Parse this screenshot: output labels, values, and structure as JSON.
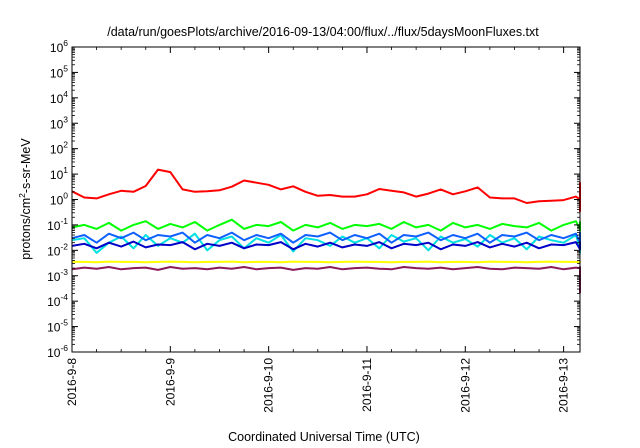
{
  "chart_data": {
    "type": "line",
    "title": "/data/run/goesPlots/archive/2016-09-13/04:00/flux/../flux/5daysMoonFluxes.txt",
    "xlabel": "Coordinated Universal Time (UTC)",
    "ylabel": {
      "pre": "protons/cm",
      "sup": "2",
      "post": "-s-sr-MeV"
    },
    "y_scale": "log",
    "ylim": [
      1e-06,
      1000000.0
    ],
    "y_ticks": [
      {
        "base": "10",
        "exp": "6"
      },
      {
        "base": "10",
        "exp": "5"
      },
      {
        "base": "10",
        "exp": "4"
      },
      {
        "base": "10",
        "exp": "3"
      },
      {
        "base": "10",
        "exp": "2"
      },
      {
        "base": "10",
        "exp": "1"
      },
      {
        "base": "10",
        "exp": "0"
      },
      {
        "base": "10",
        "exp": "-1"
      },
      {
        "base": "10",
        "exp": "-2"
      },
      {
        "base": "10",
        "exp": "-3"
      },
      {
        "base": "10",
        "exp": "-4"
      },
      {
        "base": "10",
        "exp": "-5"
      },
      {
        "base": "10",
        "exp": "-6"
      }
    ],
    "xlim": [
      "2016-09-08 00:00",
      "2016-09-13 04:00"
    ],
    "x_ticks": [
      "2016-9-8",
      "2016-9-9",
      "2016-9-10",
      "2016-9-11",
      "2016-9-12",
      "2016-9-13"
    ],
    "grid": false,
    "x_time_step_hours": 3,
    "series": [
      {
        "color": "#ff0000",
        "values": [
          2.1,
          1.2,
          1.1,
          1.6,
          2.2,
          2.0,
          3.4,
          15,
          12,
          2.5,
          2.0,
          2.1,
          2.3,
          3.2,
          5.6,
          4.6,
          3.8,
          2.5,
          3.3,
          2.0,
          1.4,
          1.5,
          1.3,
          1.3,
          1.6,
          2.6,
          2.2,
          1.9,
          1.3,
          1.7,
          2.5,
          1.6,
          2.1,
          3.0,
          1.2,
          1.1,
          1.1,
          0.73,
          0.85,
          0.9,
          0.95,
          1.3,
          1.0,
          1.8,
          2.4,
          1.6,
          1.2,
          1.5,
          0.9,
          0.8,
          0.7,
          0.9,
          1.4,
          1.5,
          1.6,
          1.9,
          1.7,
          2.8,
          3.2,
          2.6,
          2.3,
          1.3,
          0.85,
          0.65,
          0.9,
          0.75,
          1.2,
          1.5,
          2.6,
          2.2,
          2.1,
          1.7,
          1.3,
          1.1,
          0.85,
          0.75,
          0.75,
          0.85,
          0.55,
          0.75,
          1.1,
          0.75,
          0.5,
          0.35,
          0.42,
          0.35,
          0.35,
          0.45,
          0.48,
          0.6,
          1.0,
          1.5,
          2.0,
          1.2,
          1.0,
          0.8,
          1.4,
          1.5,
          1.0,
          1.0,
          3.3,
          4.5,
          4.4,
          1.2,
          1.1,
          0.8,
          0.5,
          0.48,
          0.5
        ]
      },
      {
        "color": "#00ff00",
        "values": [
          0.08,
          0.1,
          0.07,
          0.12,
          0.06,
          0.1,
          0.14,
          0.07,
          0.11,
          0.08,
          0.13,
          0.06,
          0.1,
          0.16,
          0.07,
          0.1,
          0.09,
          0.13,
          0.06,
          0.1,
          0.08,
          0.12,
          0.07,
          0.1,
          0.09,
          0.11,
          0.07,
          0.13,
          0.08,
          0.1,
          0.06,
          0.12,
          0.08,
          0.1,
          0.07,
          0.11,
          0.09,
          0.08,
          0.12,
          0.06,
          0.1,
          0.14,
          0.07,
          0.09,
          0.11,
          0.06,
          0.1,
          0.08,
          0.13,
          0.07,
          0.1,
          0.09,
          0.12,
          0.06,
          0.1,
          0.08,
          0.11,
          0.07,
          0.13,
          0.09,
          0.1,
          0.07,
          0.12,
          0.08,
          0.1,
          0.06,
          0.11,
          0.09,
          0.1,
          0.07,
          0.12,
          0.08,
          0.1,
          0.09,
          0.11,
          0.06,
          0.1,
          0.08,
          0.12,
          0.07,
          0.1,
          0.09,
          0.11,
          0.06,
          0.12,
          0.08,
          0.1,
          0.07,
          0.11,
          0.09,
          0.1,
          0.07,
          0.12,
          0.08,
          0.1,
          0.06,
          0.11,
          0.09,
          0.1,
          0.07,
          0.12,
          0.08,
          0.1,
          0.09,
          0.11,
          0.08,
          0.1,
          0.09,
          0.1
        ]
      },
      {
        "color": "#00e0e0",
        "values": [
          0.025,
          0.03,
          0.008,
          0.02,
          0.035,
          0.012,
          0.04,
          0.015,
          0.03,
          0.02,
          0.045,
          0.01,
          0.025,
          0.035,
          0.012,
          0.03,
          0.02,
          0.04,
          0.009,
          0.03,
          0.025,
          0.015,
          0.035,
          0.02,
          0.03,
          0.012,
          0.04,
          0.022,
          0.03,
          0.01,
          0.035,
          0.02,
          0.028,
          0.014,
          0.04,
          0.02,
          0.03,
          0.011,
          0.035,
          0.025,
          0.02,
          0.04,
          0.012,
          0.03,
          0.022,
          0.035,
          0.009,
          0.03,
          0.025,
          0.015,
          0.04,
          0.02,
          0.03,
          0.012,
          0.035,
          0.025,
          0.02,
          0.04,
          0.01,
          0.03,
          0.022,
          0.035,
          0.013,
          0.03,
          0.025,
          0.02,
          0.04,
          0.011,
          0.03,
          0.022,
          0.035,
          0.015,
          0.03,
          0.02,
          0.04,
          0.012,
          0.03,
          0.025,
          0.02,
          0.035,
          0.01,
          0.03,
          0.022,
          0.04,
          0.015,
          0.03,
          0.02,
          0.035,
          0.012,
          0.03,
          0.025,
          0.02,
          0.04,
          0.011,
          0.03,
          0.022,
          0.035,
          0.008,
          0.03,
          0.025,
          0.02,
          0.04,
          0.015,
          0.03,
          0.02,
          0.035,
          0.025,
          0.03,
          0.028
        ]
      },
      {
        "color": "#1060ff",
        "values": [
          0.03,
          0.04,
          0.02,
          0.045,
          0.03,
          0.05,
          0.025,
          0.04,
          0.035,
          0.05,
          0.02,
          0.04,
          0.03,
          0.05,
          0.025,
          0.04,
          0.03,
          0.045,
          0.02,
          0.04,
          0.035,
          0.05,
          0.025,
          0.04,
          0.03,
          0.045,
          0.02,
          0.04,
          0.035,
          0.05,
          0.025,
          0.04,
          0.03,
          0.045,
          0.02,
          0.04,
          0.035,
          0.05,
          0.025,
          0.04,
          0.03,
          0.045,
          0.02,
          0.04,
          0.035,
          0.05,
          0.025,
          0.04,
          0.03,
          0.045,
          0.02,
          0.04,
          0.035,
          0.05,
          0.025,
          0.04,
          0.03,
          0.045,
          0.02,
          0.04,
          0.035,
          0.05,
          0.025,
          0.04,
          0.03,
          0.045,
          0.02,
          0.04,
          0.035,
          0.05,
          0.025,
          0.04,
          0.03,
          0.045,
          0.02,
          0.04,
          0.035,
          0.05,
          0.025,
          0.04,
          0.03,
          0.045,
          0.02,
          0.04,
          0.035,
          0.05,
          0.025,
          0.04,
          0.03,
          0.045,
          0.02,
          0.04,
          0.035,
          0.05,
          0.025,
          0.04,
          0.03,
          0.045,
          0.02,
          0.04,
          0.035,
          0.05,
          0.025,
          0.04,
          0.03,
          0.045,
          0.035,
          0.04,
          0.04
        ]
      },
      {
        "color": "#0000c8",
        "values": [
          0.015,
          0.018,
          0.012,
          0.02,
          0.014,
          0.022,
          0.013,
          0.017,
          0.016,
          0.021,
          0.011,
          0.018,
          0.015,
          0.02,
          0.012,
          0.017,
          0.016,
          0.021,
          0.011,
          0.018,
          0.014,
          0.02,
          0.013,
          0.017,
          0.015,
          0.021,
          0.012,
          0.018,
          0.016,
          0.02,
          0.011,
          0.017,
          0.015,
          0.021,
          0.013,
          0.018,
          0.014,
          0.02,
          0.012,
          0.017,
          0.016,
          0.021,
          0.011,
          0.018,
          0.015,
          0.02,
          0.013,
          0.017,
          0.014,
          0.021,
          0.012,
          0.018,
          0.016,
          0.02,
          0.011,
          0.017,
          0.015,
          0.021,
          0.013,
          0.018,
          0.014,
          0.02,
          0.012,
          0.017,
          0.016,
          0.021,
          0.011,
          0.018,
          0.015,
          0.02,
          0.013,
          0.017,
          0.014,
          0.021,
          0.012,
          0.018,
          0.016,
          0.02,
          0.011,
          0.017,
          0.015,
          0.021,
          0.013,
          0.018,
          0.014,
          0.02,
          0.012,
          0.017,
          0.016,
          0.021,
          0.011,
          0.018,
          0.015,
          0.02,
          0.013,
          0.017,
          0.014,
          0.021,
          0.012,
          0.018,
          0.016,
          0.02,
          0.011,
          0.017,
          0.015,
          0.021,
          0.014,
          0.016,
          0.016
        ]
      },
      {
        "color": "#ffff00",
        "values": [
          0.0035,
          0.0035,
          0.0034,
          0.0036,
          0.0035,
          0.0035,
          0.0034,
          0.0035,
          0.0036,
          0.0035,
          0.0034,
          0.0035,
          0.0035,
          0.0036,
          0.0034,
          0.0035,
          0.0035,
          0.0034,
          0.0036,
          0.0035,
          0.0035,
          0.0034,
          0.0035,
          0.0036,
          0.0035,
          0.0035,
          0.0034,
          0.0035,
          0.0035,
          0.0036,
          0.0034,
          0.0035,
          0.0035,
          0.0034,
          0.0036,
          0.0035,
          0.0035,
          0.0034,
          0.0035,
          0.0036,
          0.0035,
          0.0035,
          0.0034,
          0.0035,
          0.0035,
          0.0036,
          0.0034,
          0.0035,
          0.0035,
          0.0034,
          0.0036,
          0.0035,
          0.0035,
          0.0034,
          0.0035,
          0.0036,
          0.0035,
          0.0035,
          0.0034,
          0.0035,
          0.0035,
          0.0036,
          0.0034,
          0.0035,
          0.0035,
          0.0034,
          0.0036,
          0.0035,
          0.0035,
          0.0034,
          0.0035,
          0.0036,
          0.0035,
          0.0035,
          0.0034,
          0.0035,
          0.0035,
          0.0036,
          0.0034,
          0.0035,
          0.0035,
          0.0034,
          0.0036,
          0.0035,
          0.0035,
          0.0034,
          0.0035,
          0.0036,
          0.0035,
          0.0035,
          0.0034,
          0.0035,
          0.0035,
          0.0036,
          0.0034,
          0.0035,
          0.0035,
          0.0034,
          0.0036,
          0.0035,
          0.0035,
          0.0034,
          0.0035,
          0.0036,
          0.0035,
          0.0035,
          0.0034,
          0.0035,
          0.0035
        ]
      },
      {
        "color": "#8b1a5a",
        "values": [
          0.0018,
          0.0021,
          0.0019,
          0.0022,
          0.0018,
          0.002,
          0.0021,
          0.0017,
          0.0022,
          0.0019,
          0.002,
          0.0018,
          0.0021,
          0.0019,
          0.0022,
          0.0018,
          0.002,
          0.0021,
          0.0017,
          0.002,
          0.0019,
          0.0022,
          0.0018,
          0.002,
          0.0021,
          0.0019,
          0.0018,
          0.0022,
          0.002,
          0.0019,
          0.0021,
          0.0018,
          0.002,
          0.0022,
          0.0019,
          0.0018,
          0.0021,
          0.002,
          0.0019,
          0.0022,
          0.0018,
          0.0021,
          0.002,
          0.0019,
          0.00022,
          0.0021,
          0.0018,
          0.002,
          0.0022,
          0.0019,
          0.0018,
          0.0021,
          0.002,
          0.0019,
          0.0022,
          0.0018,
          0.002,
          0.0021,
          0.0019,
          0.0018,
          0.0022,
          0.002,
          0.0019,
          0.0021,
          0.0018,
          0.002,
          0.0022,
          0.0019,
          0.0018,
          0.0021,
          0.002,
          0.0019,
          0.0022,
          0.0018,
          0.002,
          0.0021,
          0.0019,
          0.0018,
          0.0022,
          0.002,
          0.0019,
          0.0021,
          0.0018,
          0.002,
          0.0022,
          0.0019,
          0.0018,
          0.0021,
          0.002,
          0.0019,
          0.0022,
          0.0018,
          0.002,
          0.0021,
          0.0019,
          0.0018,
          0.0022,
          0.002,
          0.0019,
          0.0021,
          0.0018,
          0.002,
          0.0022,
          0.0019,
          0.0018,
          0.0021,
          0.002,
          0.0019,
          0.002
        ]
      }
    ]
  }
}
